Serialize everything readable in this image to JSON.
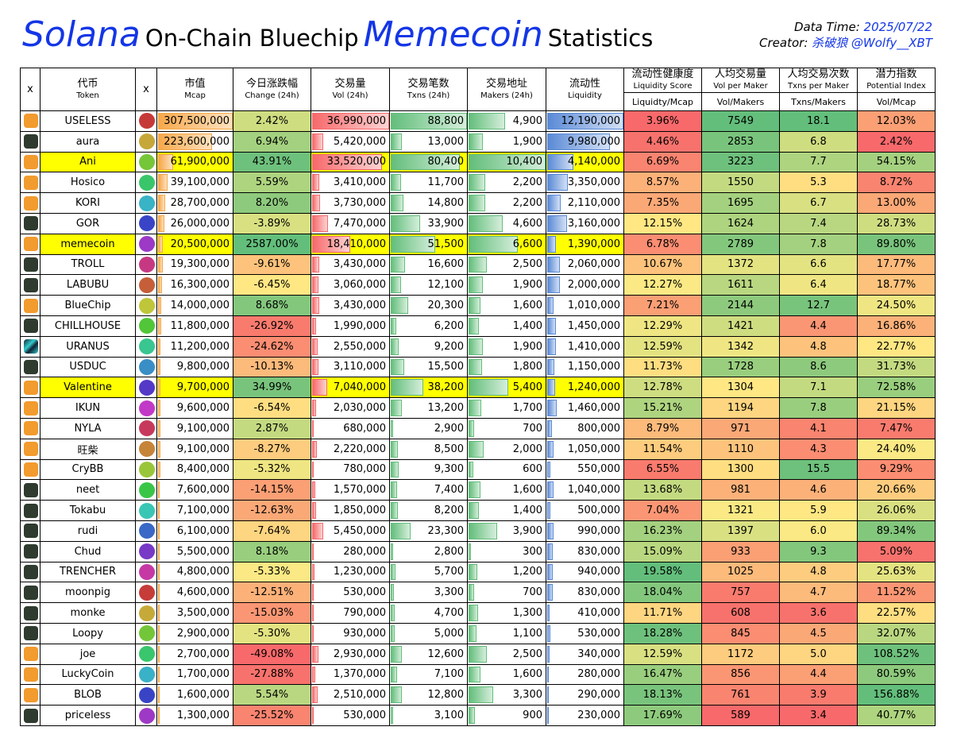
{
  "header": {
    "title": [
      "Solana",
      "On-Chain Bluechip",
      "Memecoin",
      "Statistics"
    ],
    "data_time_label": "Data Time:",
    "data_time": "2025/07/22",
    "creator_label": "Creator:",
    "creator": "杀破狼 @Wolfy__XBT"
  },
  "table": {
    "headers": [
      {
        "zh": "x"
      },
      {
        "zh": "代币",
        "en": "Token"
      },
      {
        "zh": "x"
      },
      {
        "zh": "市值",
        "en": "Mcap"
      },
      {
        "zh": "今日涨跌幅",
        "en": "Change (24h)"
      },
      {
        "zh": "交易量",
        "en": "Vol (24h)"
      },
      {
        "zh": "交易笔数",
        "en": "Txns (24h)"
      },
      {
        "zh": "交易地址",
        "en": "Makers (24h)"
      },
      {
        "zh": "流动性",
        "en": "Liquidity"
      },
      {
        "zh": "流动性健康度",
        "en": "Liquidity Score",
        "formula": "Liquidty/Mcap"
      },
      {
        "zh": "人均交易量",
        "en": "Vol per Maker",
        "formula": "Vol/Makers"
      },
      {
        "zh": "人均交易次数",
        "en": "Txns per Maker",
        "formula": "Txns/Makers"
      },
      {
        "zh": "潜力指数",
        "en": "Potential Index",
        "formula": "Vol/Mcap"
      }
    ],
    "rows": [
      {
        "token": "USELESS",
        "values": [
          "307,500,000",
          "2.42%",
          "36,990,000",
          "88,800",
          "4,900",
          "12,190,000",
          "3.96%",
          "7549",
          "18.1",
          "12.03%"
        ]
      },
      {
        "token": "aura",
        "values": [
          "223,600,000",
          "6.94%",
          "5,420,000",
          "13,000",
          "1,900",
          "9,980,000",
          "4.46%",
          "2853",
          "6.8",
          "2.42%"
        ]
      },
      {
        "token": "Ani",
        "highlighted": true,
        "values": [
          "61,900,000",
          "43.91%",
          "33,520,000",
          "80,400",
          "10,400",
          "4,140,000",
          "6.69%",
          "3223",
          "7.7",
          "54.15%"
        ]
      },
      {
        "token": "Hosico",
        "values": [
          "39,100,000",
          "5.59%",
          "3,410,000",
          "11,700",
          "2,200",
          "3,350,000",
          "8.57%",
          "1550",
          "5.3",
          "8.72%"
        ]
      },
      {
        "token": "KORI",
        "values": [
          "28,700,000",
          "8.20%",
          "3,730,000",
          "14,800",
          "2,200",
          "2,110,000",
          "7.35%",
          "1695",
          "6.7",
          "13.00%"
        ]
      },
      {
        "token": "GOR",
        "values": [
          "26,000,000",
          "-3.89%",
          "7,470,000",
          "33,900",
          "4,600",
          "3,160,000",
          "12.15%",
          "1624",
          "7.4",
          "28.73%"
        ]
      },
      {
        "token": "memecoin",
        "highlighted": true,
        "values": [
          "20,500,000",
          "2587.00%",
          "18,410,000",
          "51,500",
          "6,600",
          "1,390,000",
          "6.78%",
          "2789",
          "7.8",
          "89.80%"
        ]
      },
      {
        "token": "TROLL",
        "values": [
          "19,300,000",
          "-9.61%",
          "3,430,000",
          "16,600",
          "2,500",
          "2,060,000",
          "10.67%",
          "1372",
          "6.6",
          "17.77%"
        ]
      },
      {
        "token": "LABUBU",
        "values": [
          "16,300,000",
          "-6.45%",
          "3,060,000",
          "12,100",
          "1,900",
          "2,000,000",
          "12.27%",
          "1611",
          "6.4",
          "18.77%"
        ]
      },
      {
        "token": "BlueChip",
        "values": [
          "14,000,000",
          "8.68%",
          "3,430,000",
          "20,300",
          "1,600",
          "1,010,000",
          "7.21%",
          "2144",
          "12.7",
          "24.50%"
        ]
      },
      {
        "token": "CHILLHOUSE",
        "values": [
          "11,800,000",
          "-26.92%",
          "1,990,000",
          "6,200",
          "1,400",
          "1,450,000",
          "12.29%",
          "1421",
          "4.4",
          "16.86%"
        ]
      },
      {
        "token": "URANUS",
        "values": [
          "11,200,000",
          "-24.62%",
          "2,550,000",
          "9,200",
          "1,900",
          "1,410,000",
          "12.59%",
          "1342",
          "4.8",
          "22.77%"
        ]
      },
      {
        "token": "USDUC",
        "values": [
          "9,800,000",
          "-10.13%",
          "3,110,000",
          "15,500",
          "1,800",
          "1,150,000",
          "11.73%",
          "1728",
          "8.6",
          "31.73%"
        ]
      },
      {
        "token": "Valentine",
        "highlighted": true,
        "values": [
          "9,700,000",
          "34.99%",
          "7,040,000",
          "38,200",
          "5,400",
          "1,240,000",
          "12.78%",
          "1304",
          "7.1",
          "72.58%"
        ]
      },
      {
        "token": "IKUN",
        "values": [
          "9,600,000",
          "-6.54%",
          "2,030,000",
          "13,200",
          "1,700",
          "1,460,000",
          "15.21%",
          "1194",
          "7.8",
          "21.15%"
        ]
      },
      {
        "token": "NYLA",
        "values": [
          "9,100,000",
          "2.87%",
          "680,000",
          "2,900",
          "700",
          "800,000",
          "8.79%",
          "971",
          "4.1",
          "7.47%"
        ]
      },
      {
        "token": "旺柴",
        "values": [
          "9,100,000",
          "-8.27%",
          "2,220,000",
          "8,500",
          "2,000",
          "1,050,000",
          "11.54%",
          "1110",
          "4.3",
          "24.40%"
        ]
      },
      {
        "token": "CryBB",
        "values": [
          "8,400,000",
          "-5.32%",
          "780,000",
          "9,300",
          "600",
          "550,000",
          "6.55%",
          "1300",
          "15.5",
          "9.29%"
        ]
      },
      {
        "token": "neet",
        "values": [
          "7,600,000",
          "-14.15%",
          "1,570,000",
          "7,400",
          "1,600",
          "1,040,000",
          "13.68%",
          "981",
          "4.6",
          "20.66%"
        ]
      },
      {
        "token": "Tokabu",
        "values": [
          "7,100,000",
          "-12.63%",
          "1,850,000",
          "8,200",
          "1,400",
          "500,000",
          "7.04%",
          "1321",
          "5.9",
          "26.06%"
        ]
      },
      {
        "token": "rudi",
        "values": [
          "6,100,000",
          "-7.64%",
          "5,450,000",
          "23,300",
          "3,900",
          "990,000",
          "16.23%",
          "1397",
          "6.0",
          "89.34%"
        ]
      },
      {
        "token": "Chud",
        "values": [
          "5,500,000",
          "8.18%",
          "280,000",
          "2,800",
          "300",
          "830,000",
          "15.09%",
          "933",
          "9.3",
          "5.09%"
        ]
      },
      {
        "token": "TRENCHER",
        "values": [
          "4,800,000",
          "-5.33%",
          "1,230,000",
          "5,700",
          "1,200",
          "940,000",
          "19.58%",
          "1025",
          "4.8",
          "25.63%"
        ]
      },
      {
        "token": "moonpig",
        "values": [
          "4,600,000",
          "-12.51%",
          "530,000",
          "3,300",
          "700",
          "830,000",
          "18.04%",
          "757",
          "4.7",
          "11.52%"
        ]
      },
      {
        "token": "monke",
        "values": [
          "3,500,000",
          "-15.03%",
          "790,000",
          "4,700",
          "1,300",
          "410,000",
          "11.71%",
          "608",
          "3.6",
          "22.57%"
        ]
      },
      {
        "token": "Loopy",
        "values": [
          "2,900,000",
          "-5.30%",
          "930,000",
          "5,000",
          "1,100",
          "530,000",
          "18.28%",
          "845",
          "4.5",
          "32.07%"
        ]
      },
      {
        "token": "joe",
        "values": [
          "2,700,000",
          "-49.08%",
          "2,930,000",
          "12,600",
          "2,500",
          "340,000",
          "12.59%",
          "1172",
          "5.0",
          "108.52%"
        ]
      },
      {
        "token": "LuckyCoin",
        "values": [
          "1,700,000",
          "-27.88%",
          "1,370,000",
          "7,100",
          "1,600",
          "280,000",
          "16.47%",
          "856",
          "4.4",
          "80.59%"
        ]
      },
      {
        "token": "BLOB",
        "values": [
          "1,600,000",
          "5.54%",
          "2,510,000",
          "12,800",
          "3,300",
          "290,000",
          "18.13%",
          "761",
          "3.9",
          "156.88%"
        ]
      },
      {
        "token": "priceless",
        "values": [
          "1,300,000",
          "-25.52%",
          "530,000",
          "3,100",
          "900",
          "230,000",
          "17.69%",
          "589",
          "3.4",
          "40.77%"
        ]
      }
    ]
  }
}
